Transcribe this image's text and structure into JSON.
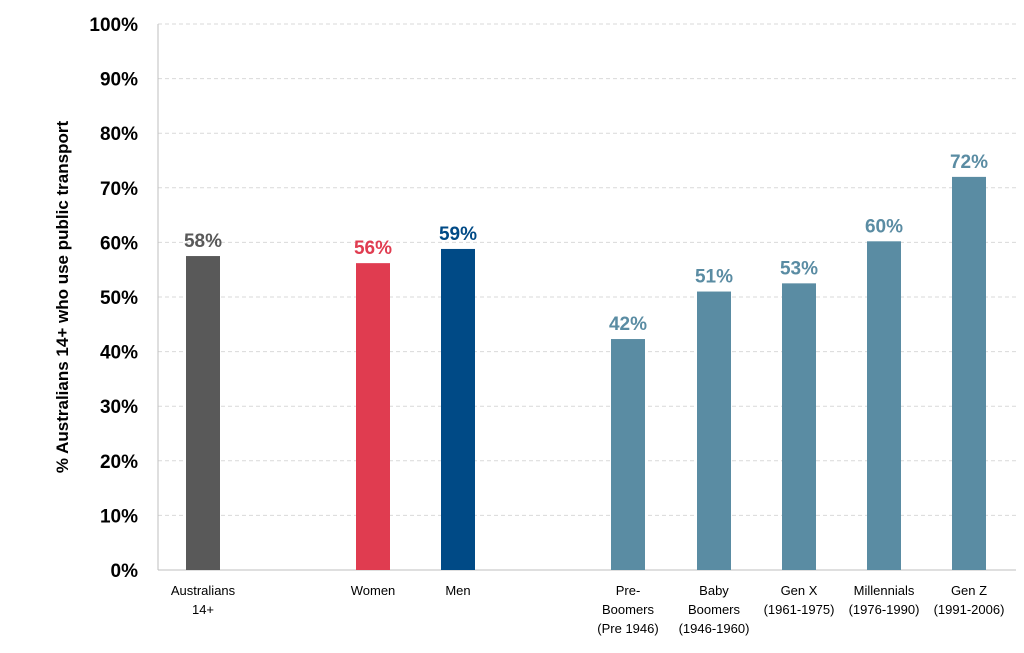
{
  "chart_data": {
    "type": "bar",
    "ylabel": "% Australians 14+ who use public transport",
    "ylim": [
      0,
      100
    ],
    "y_ticks": [
      "0%",
      "10%",
      "20%",
      "30%",
      "40%",
      "50%",
      "60%",
      "70%",
      "80%",
      "90%",
      "100%"
    ],
    "grid": "horizontal dashed",
    "categories": [
      "Australians 14+",
      "Women",
      "Men",
      "Pre-Boomers (Pre 1946)",
      "Baby Boomers (1946-1960)",
      "Gen X (1961-1975)",
      "Millennials (1976-1990)",
      "Gen Z (1991-2006)"
    ],
    "category_label_lines": [
      [
        "Australians",
        "14+"
      ],
      [
        "Women"
      ],
      [
        "Men"
      ],
      [
        "Pre-",
        "Boomers",
        "(Pre 1946)"
      ],
      [
        "Baby",
        "Boomers",
        "(1946-1960)"
      ],
      [
        "Gen X",
        "(1961-1975)"
      ],
      [
        "Millennials",
        "(1976-1990)"
      ],
      [
        "Gen Z",
        "(1991-2006)"
      ]
    ],
    "values": [
      57.5,
      56.2,
      58.8,
      42.3,
      51.0,
      52.5,
      60.2,
      72.0
    ],
    "data_labels": [
      "58%",
      "56%",
      "59%",
      "42%",
      "51%",
      "53%",
      "60%",
      "72%"
    ],
    "colors": [
      "#595959",
      "#e03c50",
      "#004a86",
      "#5a8ca3",
      "#5a8ca3",
      "#5a8ca3",
      "#5a8ca3",
      "#5a8ca3"
    ]
  }
}
